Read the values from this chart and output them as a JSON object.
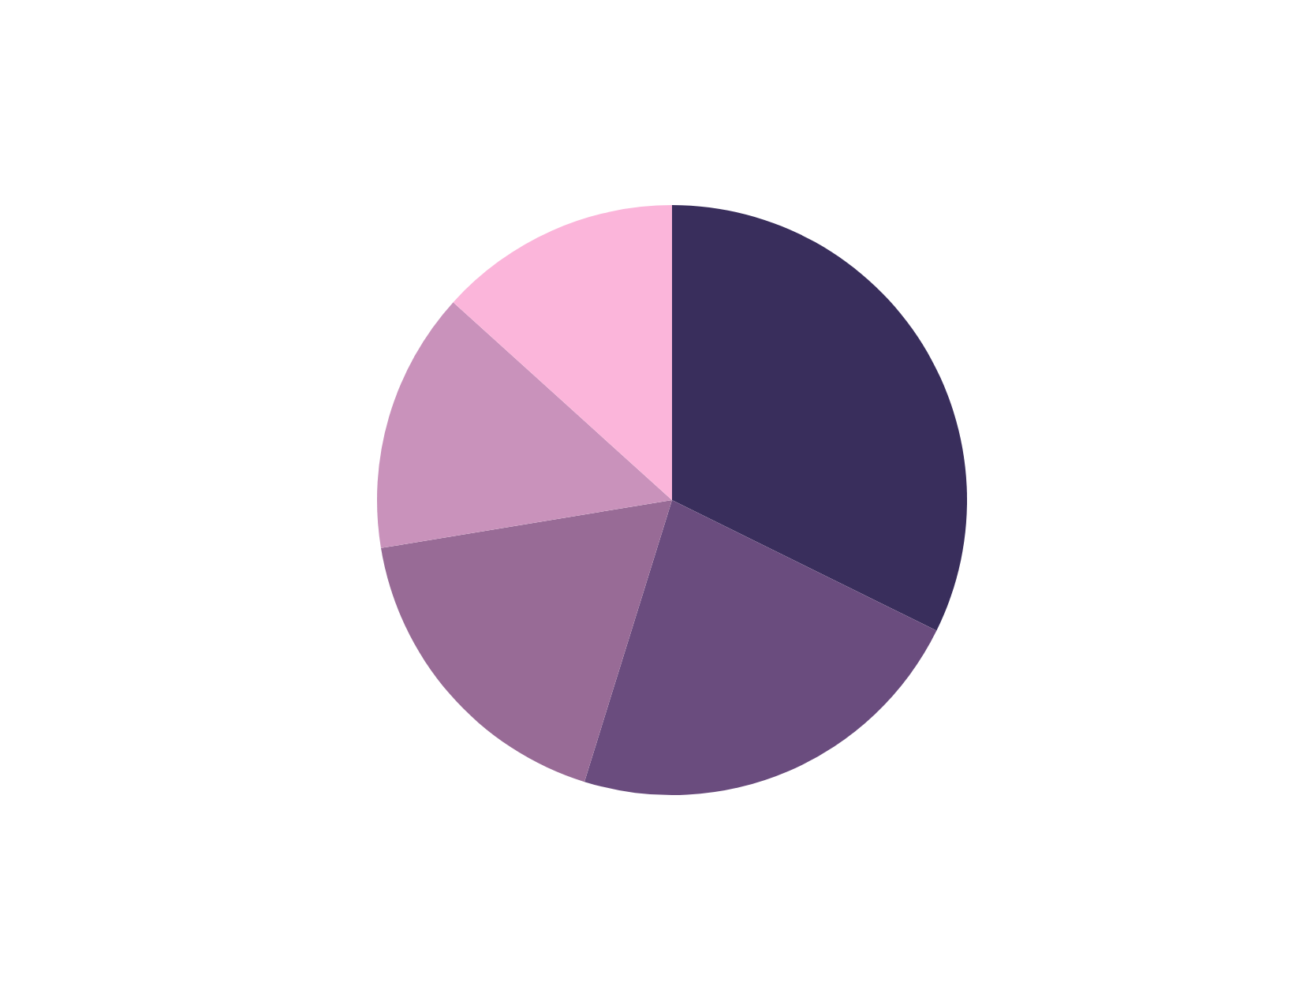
{
  "chart_data": {
    "type": "pie",
    "categories": [
      null,
      null,
      null,
      null,
      null
    ],
    "values": [
      32.3,
      22.5,
      17.6,
      14.3,
      13.3
    ],
    "colors": [
      "#392e5c",
      "#6a4c7e",
      "#986b96",
      "#c992bb",
      "#fbb5da"
    ],
    "legend": false
  }
}
